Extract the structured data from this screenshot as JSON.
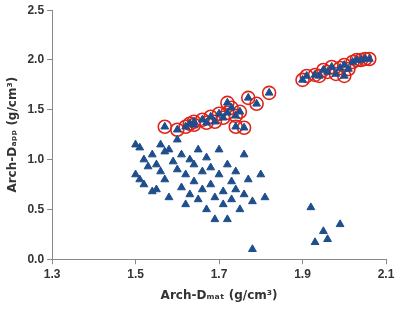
{
  "chart_data": {
    "type": "scatter",
    "x_label": "Arch-Dₘₐₜ (g/cm³)",
    "y_label": "Arch-Dₐₚₚ (g/cm³)",
    "xlim": [
      1.3,
      2.1
    ],
    "xticks": [
      1.3,
      1.5,
      1.7,
      1.9,
      2.1
    ],
    "ylim": [
      0,
      2.5
    ],
    "yticks": [
      {
        "value": 0,
        "label": "0.0"
      },
      0.5,
      {
        "value": 1,
        "label": "1.0"
      },
      1.5,
      {
        "value": 2,
        "label": "2.0"
      },
      2.5
    ],
    "grid": false,
    "series": [
      {
        "color": "#1f4e8c",
        "marker": "triangle",
        "x": [
          1.57,
          1.6,
          1.62,
          1.63,
          1.64,
          1.64,
          1.66,
          1.67,
          1.68,
          1.69,
          1.7,
          1.71,
          1.72,
          1.72,
          1.73,
          1.74,
          1.74,
          1.75,
          1.76,
          1.77,
          1.79,
          1.82,
          1.9,
          1.91,
          1.93,
          1.94,
          1.95,
          1.96,
          1.97,
          1.98,
          1.99,
          2.0,
          2.0,
          2.01,
          2.02,
          2.03,
          2.04,
          2.05,
          2.06,
          1.5,
          1.51,
          1.52,
          1.5,
          1.51,
          1.52,
          1.53,
          1.54,
          1.55,
          1.55,
          1.56,
          1.56,
          1.57,
          1.58,
          1.58,
          1.59,
          1.6,
          1.6,
          1.61,
          1.61,
          1.62,
          1.62,
          1.63,
          1.63,
          1.64,
          1.64,
          1.65,
          1.65,
          1.66,
          1.66,
          1.67,
          1.67,
          1.68,
          1.68,
          1.69,
          1.69,
          1.7,
          1.7,
          1.71,
          1.71,
          1.72,
          1.72,
          1.73,
          1.73,
          1.74,
          1.74,
          1.75,
          1.76,
          1.76,
          1.77,
          1.78,
          1.78,
          1.8,
          1.81,
          1.54,
          1.57,
          1.92,
          1.93,
          1.95,
          1.96,
          1.99
        ],
        "values": [
          1.33,
          1.3,
          1.33,
          1.36,
          1.38,
          1.35,
          1.4,
          1.37,
          1.43,
          1.38,
          1.46,
          1.42,
          1.47,
          1.57,
          1.52,
          1.44,
          1.33,
          1.48,
          1.32,
          1.62,
          1.56,
          1.67,
          1.8,
          1.84,
          1.85,
          1.84,
          1.9,
          1.88,
          1.93,
          1.86,
          1.92,
          1.84,
          1.95,
          1.91,
          1.98,
          2.0,
          2.0,
          2.01,
          2.01,
          1.15,
          1.12,
          1.0,
          0.85,
          0.8,
          0.75,
          0.93,
          1.05,
          0.95,
          0.7,
          1.15,
          0.88,
          0.8,
          1.1,
          0.62,
          0.98,
          1.2,
          0.9,
          1.05,
          0.72,
          0.85,
          0.55,
          1.0,
          0.65,
          0.95,
          0.78,
          1.1,
          0.6,
          0.88,
          0.7,
          1.02,
          0.5,
          0.92,
          0.75,
          0.62,
          0.4,
          0.85,
          1.1,
          0.68,
          0.55,
          0.95,
          0.4,
          0.78,
          0.6,
          0.88,
          0.7,
          0.5,
          1.05,
          0.65,
          0.8,
          0.1,
          0.58,
          0.85,
          0.62,
          0.68,
          1.08,
          0.52,
          0.17,
          0.28,
          0.2,
          0.35
        ]
      },
      {
        "color": "#e02418",
        "marker": "open_circle",
        "x": [
          1.57,
          1.6,
          1.62,
          1.63,
          1.64,
          1.64,
          1.66,
          1.67,
          1.68,
          1.69,
          1.7,
          1.71,
          1.72,
          1.72,
          1.73,
          1.74,
          1.74,
          1.75,
          1.76,
          1.77,
          1.79,
          1.82,
          1.9,
          1.91,
          1.93,
          1.94,
          1.95,
          1.96,
          1.97,
          1.98,
          1.99,
          2.0,
          2.0,
          2.01,
          2.02,
          2.03,
          2.04,
          2.05,
          2.06
        ],
        "values": [
          1.33,
          1.3,
          1.33,
          1.36,
          1.38,
          1.35,
          1.4,
          1.37,
          1.43,
          1.38,
          1.46,
          1.42,
          1.47,
          1.57,
          1.52,
          1.44,
          1.33,
          1.48,
          1.32,
          1.62,
          1.56,
          1.67,
          1.8,
          1.84,
          1.85,
          1.84,
          1.9,
          1.88,
          1.93,
          1.86,
          1.92,
          1.84,
          1.95,
          1.91,
          1.98,
          2.0,
          2.0,
          2.01,
          2.01
        ]
      }
    ]
  }
}
